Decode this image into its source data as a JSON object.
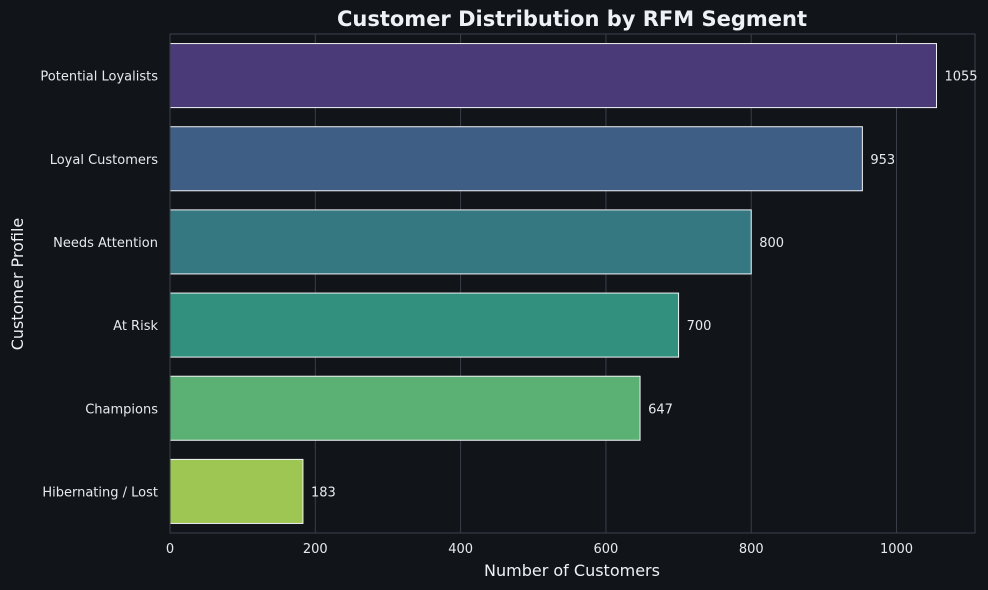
{
  "chart_data": {
    "type": "bar",
    "orientation": "horizontal",
    "title": "Customer Distribution by RFM Segment",
    "xlabel": "Number of Customers",
    "ylabel": "Customer Profile",
    "categories": [
      "Potential Loyalists",
      "Loyal Customers",
      "Needs Attention",
      "At Risk",
      "Champions",
      "Hibernating / Lost"
    ],
    "values": [
      1055,
      953,
      800,
      700,
      647,
      183
    ],
    "data_labels": [
      "1055",
      "953",
      "800",
      "700",
      "647",
      "183"
    ],
    "colors": [
      "#4b3a78",
      "#3f5e86",
      "#357882",
      "#32917e",
      "#5bb073",
      "#9dc652"
    ],
    "xlim": [
      0,
      1108
    ],
    "xticks": [
      0,
      200,
      400,
      600,
      800,
      1000
    ],
    "xtick_labels": [
      "0",
      "200",
      "400",
      "600",
      "800",
      "1000"
    ],
    "grid": "vertical",
    "background": "#111419",
    "text_color": "#e6e9ee",
    "grid_color": "#3a3f4a"
  }
}
